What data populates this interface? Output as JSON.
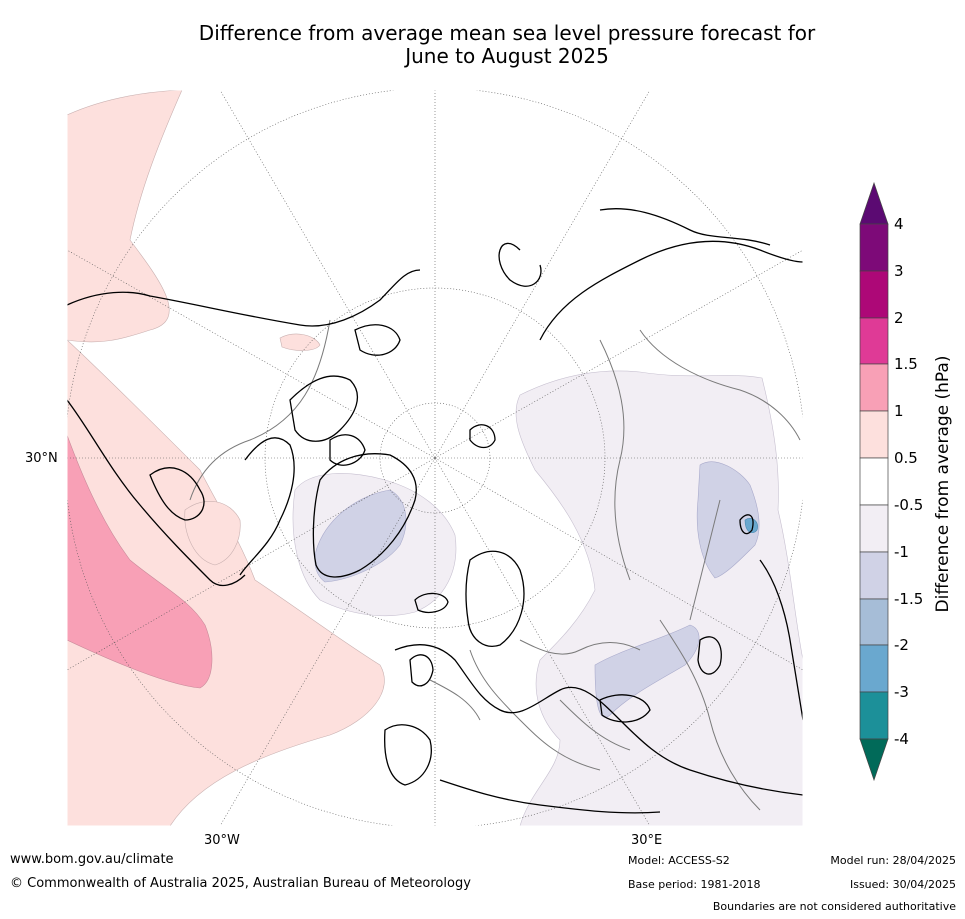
{
  "title_line1": "Difference from average mean sea level pressure forecast for",
  "title_line2": "June to August 2025",
  "graticule_labels": {
    "lat_30n": "30°N",
    "lon_30w": "30°W",
    "lon_30e": "30°E"
  },
  "colorbar": {
    "title": "Difference from average (hPa)",
    "ticks": [
      "4",
      "3",
      "2",
      "1.5",
      "1",
      "0.5",
      "-0.5",
      "-1",
      "-1.5",
      "-2",
      "-3",
      "-4"
    ],
    "colors": [
      "#5b0a72",
      "#7d0a78",
      "#ad0877",
      "#df3a96",
      "#f8a0b6",
      "#fde0dd",
      "#ffffff",
      "#f2eef4",
      "#d0d2e6",
      "#a6bdd7",
      "#6aa8cf",
      "#1c9099",
      "#016a59"
    ]
  },
  "footer": {
    "url": "www.bom.gov.au/climate",
    "copyright": "© Commonwealth of Australia 2025, Australian Bureau of Meteorology",
    "model": "Model: ACCESS-S2",
    "base_period": "Base period: 1981-2018",
    "model_run": "Model run: 28/04/2025",
    "issued": "Issued: 30/04/2025",
    "disclaimer": "Boundaries are not considered authoritative"
  }
}
